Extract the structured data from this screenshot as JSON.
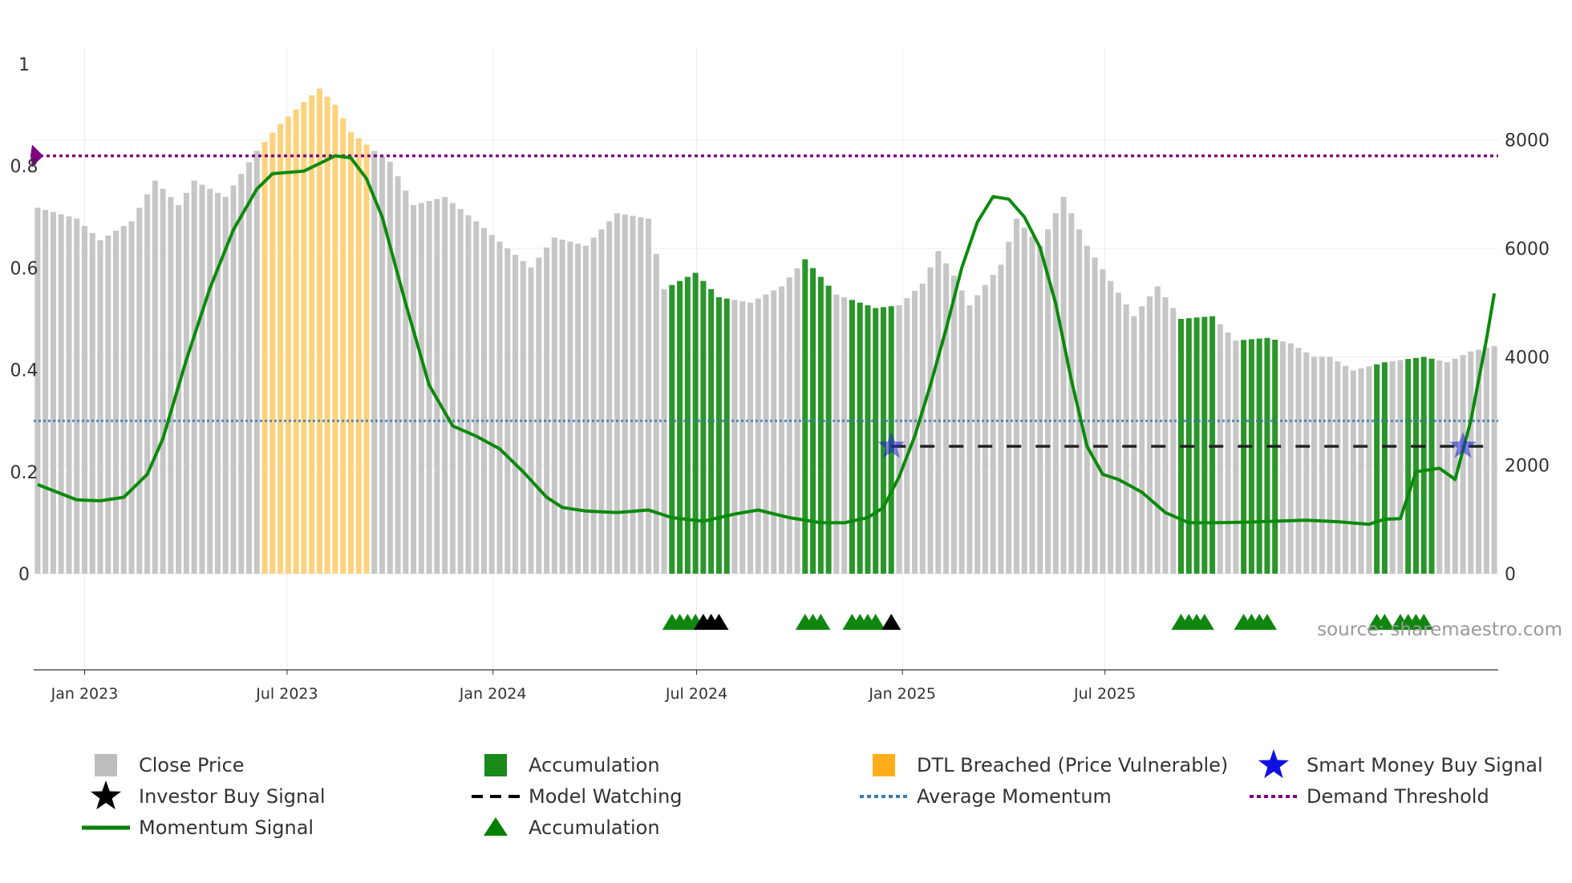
{
  "chart_data": {
    "type": "bar",
    "title": "",
    "x_type": "weekly dates",
    "date_start": "2022-11-20",
    "bar_count": 187,
    "left_axis": {
      "ticks": [
        0,
        0.2,
        0.4,
        0.6,
        0.8,
        1
      ],
      "labels": [
        "0",
        "0.2",
        "0.4",
        "0.6",
        "0.8",
        "1"
      ],
      "ylim": [
        0,
        1
      ]
    },
    "right_axis": {
      "ticks": [
        0,
        2000,
        4000,
        6000,
        8000
      ],
      "labels": [
        "0",
        "2000",
        "4000",
        "6000",
        "8000"
      ],
      "ylim": [
        0,
        9400
      ]
    },
    "x_ticks": [
      {
        "label": "Jan 2023",
        "date": "2023-01-01"
      },
      {
        "label": "Jul 2023",
        "date": "2023-07-01"
      },
      {
        "label": "Jan 2024",
        "date": "2024-01-01"
      },
      {
        "label": "Jul 2024",
        "date": "2024-07-01"
      },
      {
        "label": "Jan 2025",
        "date": "2025-01-01"
      },
      {
        "label": "Jul 2025",
        "date": "2025-07-01"
      }
    ],
    "close_price_keypoints": [
      [
        0,
        6750
      ],
      [
        5,
        6550
      ],
      [
        8,
        6150
      ],
      [
        12,
        6500
      ],
      [
        15,
        7250
      ],
      [
        18,
        6800
      ],
      [
        20,
        7250
      ],
      [
        24,
        6950
      ],
      [
        28,
        7800
      ],
      [
        31,
        8300
      ],
      [
        34,
        8700
      ],
      [
        36,
        8950
      ],
      [
        38,
        8650
      ],
      [
        40,
        8150
      ],
      [
        43,
        7800
      ],
      [
        45,
        7600
      ],
      [
        48,
        6800
      ],
      [
        52,
        6950
      ],
      [
        56,
        6500
      ],
      [
        60,
        6000
      ],
      [
        63,
        5650
      ],
      [
        66,
        6200
      ],
      [
        70,
        6050
      ],
      [
        74,
        6650
      ],
      [
        78,
        6550
      ],
      [
        80,
        5250
      ],
      [
        84,
        5550
      ],
      [
        87,
        5100
      ],
      [
        91,
        5000
      ],
      [
        95,
        5300
      ],
      [
        98,
        5800
      ],
      [
        102,
        5150
      ],
      [
        107,
        4900
      ],
      [
        110,
        4950
      ],
      [
        113,
        5350
      ],
      [
        115,
        5950
      ],
      [
        117,
        5500
      ],
      [
        119,
        4950
      ],
      [
        123,
        5700
      ],
      [
        125,
        6550
      ],
      [
        128,
        6050
      ],
      [
        131,
        6950
      ],
      [
        134,
        6050
      ],
      [
        137,
        5400
      ],
      [
        140,
        4750
      ],
      [
        143,
        5300
      ],
      [
        146,
        4700
      ],
      [
        150,
        4750
      ],
      [
        153,
        4300
      ],
      [
        157,
        4350
      ],
      [
        160,
        4250
      ],
      [
        163,
        4000
      ],
      [
        165,
        4000
      ],
      [
        168,
        3750
      ],
      [
        172,
        3900
      ],
      [
        177,
        4000
      ],
      [
        180,
        3900
      ],
      [
        183,
        4100
      ],
      [
        186,
        4200
      ]
    ],
    "accumulation_ranges": [
      [
        81,
        88
      ],
      [
        98,
        101
      ],
      [
        104,
        109
      ],
      [
        146,
        150
      ],
      [
        154,
        158
      ],
      [
        171,
        172
      ],
      [
        175,
        178
      ]
    ],
    "dtl_breached_range": [
      29,
      42
    ],
    "momentum_keypoints": [
      [
        0,
        0.175
      ],
      [
        2,
        0.163
      ],
      [
        5,
        0.145
      ],
      [
        8,
        0.143
      ],
      [
        11,
        0.15
      ],
      [
        14,
        0.195
      ],
      [
        16,
        0.265
      ],
      [
        19,
        0.42
      ],
      [
        22,
        0.56
      ],
      [
        25,
        0.675
      ],
      [
        28,
        0.755
      ],
      [
        30,
        0.785
      ],
      [
        34,
        0.79
      ],
      [
        36,
        0.805
      ],
      [
        38,
        0.82
      ],
      [
        40,
        0.816
      ],
      [
        42,
        0.775
      ],
      [
        44,
        0.7
      ],
      [
        47,
        0.53
      ],
      [
        50,
        0.37
      ],
      [
        53,
        0.29
      ],
      [
        56,
        0.27
      ],
      [
        59,
        0.245
      ],
      [
        62,
        0.2
      ],
      [
        65,
        0.15
      ],
      [
        67,
        0.13
      ],
      [
        70,
        0.123
      ],
      [
        74,
        0.12
      ],
      [
        78,
        0.125
      ],
      [
        81,
        0.11
      ],
      [
        85,
        0.103
      ],
      [
        87,
        0.11
      ],
      [
        89,
        0.117
      ],
      [
        92,
        0.125
      ],
      [
        96,
        0.11
      ],
      [
        100,
        0.1
      ],
      [
        103,
        0.1
      ],
      [
        106,
        0.11
      ],
      [
        108,
        0.13
      ],
      [
        110,
        0.19
      ],
      [
        112,
        0.27
      ],
      [
        114,
        0.37
      ],
      [
        116,
        0.48
      ],
      [
        118,
        0.6
      ],
      [
        120,
        0.69
      ],
      [
        122,
        0.74
      ],
      [
        124,
        0.735
      ],
      [
        126,
        0.7
      ],
      [
        128,
        0.64
      ],
      [
        130,
        0.53
      ],
      [
        132,
        0.38
      ],
      [
        134,
        0.25
      ],
      [
        136,
        0.195
      ],
      [
        138,
        0.185
      ],
      [
        141,
        0.16
      ],
      [
        144,
        0.12
      ],
      [
        147,
        0.1
      ],
      [
        150,
        0.1
      ],
      [
        154,
        0.101
      ],
      [
        158,
        0.103
      ],
      [
        162,
        0.105
      ],
      [
        166,
        0.102
      ],
      [
        170,
        0.097
      ],
      [
        172,
        0.107
      ],
      [
        174,
        0.108
      ],
      [
        176,
        0.2
      ],
      [
        179,
        0.207
      ],
      [
        181,
        0.185
      ],
      [
        183,
        0.3
      ],
      [
        185,
        0.46
      ],
      [
        186,
        0.55
      ]
    ],
    "average_momentum": 0.3,
    "demand_threshold": 0.82,
    "model_watching": {
      "level": 0.25,
      "start_bar": 109,
      "end_bar": 185
    },
    "smart_money_buy_signals": [
      {
        "bar": 109,
        "value": 0.25
      },
      {
        "bar": 182,
        "value": 0.25
      }
    ],
    "accumulation_markers": [
      81,
      82,
      83,
      84,
      98,
      99,
      100,
      104,
      105,
      106,
      107,
      146,
      147,
      148,
      149,
      154,
      155,
      156,
      157,
      171,
      172,
      174,
      175,
      176,
      177
    ],
    "investor_buy_markers": [
      85,
      86,
      87,
      109
    ],
    "legend": [
      {
        "label": "Close Price",
        "type": "square",
        "color": "#bdbdbd"
      },
      {
        "label": "Accumulation",
        "type": "square",
        "color": "#1a8a1a"
      },
      {
        "label": "DTL Breached (Price Vulnerable)",
        "type": "square",
        "color": "#ffae1a"
      },
      {
        "label": "Smart Money Buy Signal",
        "type": "star",
        "color": "#1010e0"
      },
      {
        "label": "Investor Buy Signal",
        "type": "star",
        "color": "#000000"
      },
      {
        "label": "Model Watching",
        "type": "dash",
        "color": "#000000"
      },
      {
        "label": "Average Momentum",
        "type": "dot",
        "color": "#3a7ab0"
      },
      {
        "label": "Demand Threshold",
        "type": "dot",
        "color": "#800080"
      },
      {
        "label": "Momentum Signal",
        "type": "line",
        "color": "#008000"
      },
      {
        "label": "Accumulation",
        "type": "triangle",
        "color": "#008000"
      }
    ],
    "source_note": "source: sharemaestro.com"
  }
}
